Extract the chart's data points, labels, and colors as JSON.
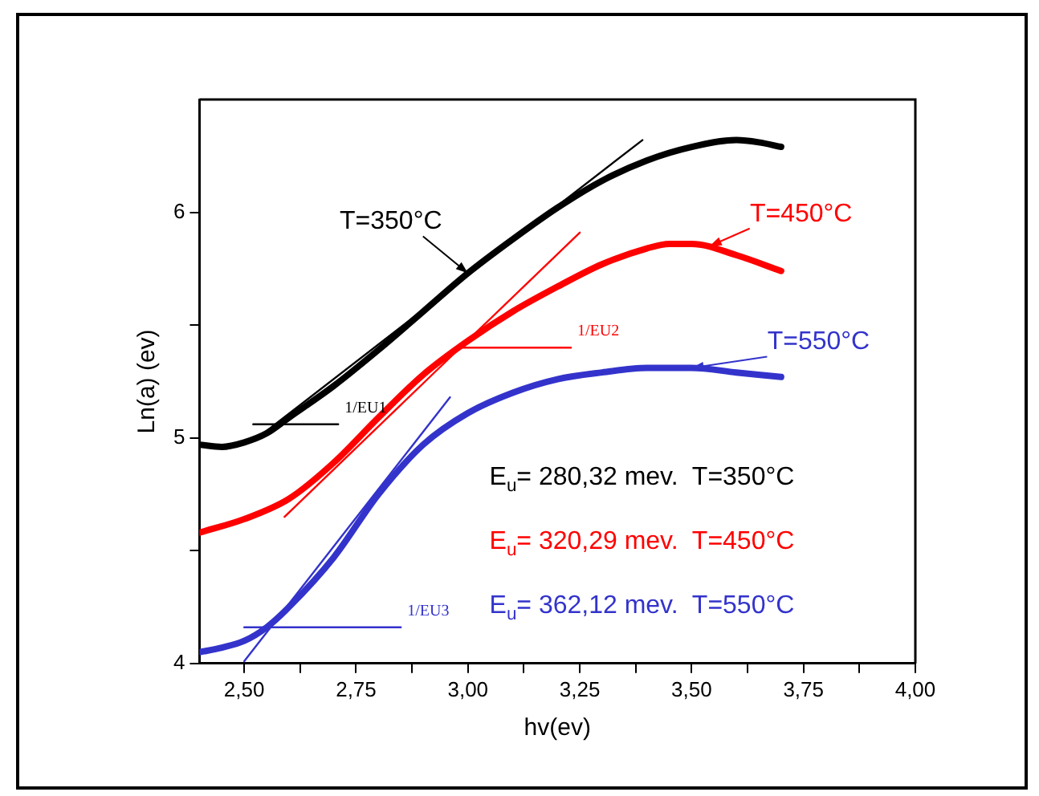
{
  "chart_data": {
    "type": "line",
    "xlabel": "hv(ev)",
    "ylabel": "Ln(a) (ev)",
    "xlim": [
      2.4,
      4.0
    ],
    "ylim": [
      4.0,
      6.5
    ],
    "xticks": [
      {
        "value": 2.5,
        "label": "2,50"
      },
      {
        "value": 2.625,
        "label": null
      },
      {
        "value": 2.75,
        "label": "2,75"
      },
      {
        "value": 2.875,
        "label": null
      },
      {
        "value": 3.0,
        "label": "3,00"
      },
      {
        "value": 3.125,
        "label": null
      },
      {
        "value": 3.25,
        "label": "3,25"
      },
      {
        "value": 3.375,
        "label": null
      },
      {
        "value": 3.5,
        "label": "3,50"
      },
      {
        "value": 3.625,
        "label": null
      },
      {
        "value": 3.75,
        "label": "3,75"
      },
      {
        "value": 3.875,
        "label": null
      },
      {
        "value": 4.0,
        "label": "4,00"
      }
    ],
    "yticks": [
      4,
      {
        "value": 4.5,
        "label": null
      },
      5,
      {
        "value": 5.5,
        "label": null
      },
      6
    ],
    "grid": false,
    "legend": false,
    "marker": "none",
    "line_style": "solid",
    "series": [
      {
        "color": "#000000",
        "x": [
          2.4,
          2.45,
          2.5,
          2.55,
          2.6,
          2.7,
          2.8,
          2.9,
          3.0,
          3.1,
          3.2,
          3.3,
          3.4,
          3.5,
          3.6,
          3.65,
          3.7
        ],
        "values": [
          4.97,
          4.96,
          4.98,
          5.02,
          5.09,
          5.23,
          5.39,
          5.56,
          5.73,
          5.88,
          6.02,
          6.14,
          6.23,
          6.29,
          6.32,
          6.31,
          6.29
        ]
      },
      {
        "color": "#ff0000",
        "x": [
          2.4,
          2.5,
          2.6,
          2.7,
          2.8,
          2.9,
          3.0,
          3.1,
          3.2,
          3.3,
          3.4,
          3.45,
          3.5,
          3.6,
          3.7
        ],
        "values": [
          4.58,
          4.64,
          4.73,
          4.89,
          5.09,
          5.28,
          5.43,
          5.56,
          5.67,
          5.77,
          5.84,
          5.86,
          5.86,
          5.81,
          5.74
        ]
      },
      {
        "color": "#3333cc",
        "x": [
          2.4,
          2.45,
          2.5,
          2.55,
          2.6,
          2.7,
          2.8,
          2.9,
          3.0,
          3.1,
          3.2,
          3.3,
          3.4,
          3.5,
          3.6,
          3.7
        ],
        "values": [
          4.05,
          4.07,
          4.1,
          4.16,
          4.25,
          4.47,
          4.75,
          4.97,
          5.11,
          5.2,
          5.26,
          5.29,
          5.31,
          5.31,
          5.29,
          5.27
        ]
      },
      {
        "color": "#000000",
        "x": [
          2.53,
          3.39
        ],
        "values": [
          5.0,
          6.32
        ]
      },
      {
        "color": "#ff0000",
        "x": [
          2.59,
          3.25
        ],
        "values": [
          4.65,
          5.91
        ]
      },
      {
        "color": "#3333cc",
        "x": [
          2.5,
          2.96
        ],
        "values": [
          4.01,
          5.18
        ]
      },
      {
        "color": "#000000",
        "x": [
          2.52,
          2.71
        ],
        "values": [
          5.06,
          5.06
        ]
      },
      {
        "color": "#ff0000",
        "x": [
          2.98,
          3.23
        ],
        "values": [
          5.4,
          5.4
        ]
      },
      {
        "color": "#3333cc",
        "x": [
          2.5,
          2.85
        ],
        "values": [
          4.16,
          4.16
        ]
      }
    ],
    "annotations": [
      {
        "text": "T=350°C",
        "x": 3.0,
        "y": 5.73
      },
      {
        "text": "T=450°C",
        "x": 3.54,
        "y": 5.85
      },
      {
        "text": "T=550°C",
        "x": 3.5,
        "y": 5.31
      },
      "E$_{u}$= 280,32 mev.  T=350°C",
      "E$_{u}$= 320,29 mev.  T=450°C",
      "E$_{u}$= 362,12 mev.  T=550°C",
      "1/EU1",
      "1/EU2",
      "1/EU3"
    ]
  }
}
